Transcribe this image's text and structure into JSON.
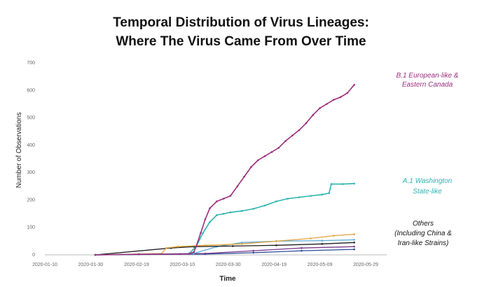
{
  "chart_data": {
    "type": "line",
    "title": "Temporal Distribution of Virus Lineages:",
    "subtitle": "Where The Virus Came From Over Time",
    "xlabel": "Time",
    "ylabel": "Number of Observations",
    "ylim": [
      0,
      700
    ],
    "xlim": [
      "2020-01-10",
      "2020-05-29"
    ],
    "yticks": [
      0,
      100,
      200,
      300,
      400,
      500,
      600,
      700
    ],
    "xticks": [
      "2020-01-10",
      "2020-01-30",
      "2020-02-19",
      "2020-03-10",
      "2020-03-30",
      "2020-04-19",
      "2020-05-09",
      "2020-05-29"
    ],
    "grid": false,
    "series": [
      {
        "name": "B.1 European-like & Eastern Canada",
        "color": "#9b2d7f",
        "points": [
          [
            "2020-02-01",
            0
          ],
          [
            "2020-02-20",
            2
          ],
          [
            "2020-03-09",
            3
          ],
          [
            "2020-03-13",
            4
          ],
          [
            "2020-03-15",
            10
          ],
          [
            "2020-03-16",
            30
          ],
          [
            "2020-03-18",
            80
          ],
          [
            "2020-03-20",
            130
          ],
          [
            "2020-03-22",
            170
          ],
          [
            "2020-03-25",
            195
          ],
          [
            "2020-03-28",
            205
          ],
          [
            "2020-03-31",
            215
          ],
          [
            "2020-04-03",
            250
          ],
          [
            "2020-04-06",
            285
          ],
          [
            "2020-04-09",
            320
          ],
          [
            "2020-04-12",
            345
          ],
          [
            "2020-04-15",
            360
          ],
          [
            "2020-04-18",
            375
          ],
          [
            "2020-04-21",
            390
          ],
          [
            "2020-04-24",
            415
          ],
          [
            "2020-04-27",
            435
          ],
          [
            "2020-04-30",
            455
          ],
          [
            "2020-05-03",
            480
          ],
          [
            "2020-05-06",
            510
          ],
          [
            "2020-05-09",
            535
          ],
          [
            "2020-05-12",
            550
          ],
          [
            "2020-05-15",
            565
          ],
          [
            "2020-05-18",
            575
          ],
          [
            "2020-05-21",
            590
          ],
          [
            "2020-05-24",
            620
          ]
        ]
      },
      {
        "name": "A.1 Washington State-like",
        "color": "#2bb3b0",
        "points": [
          [
            "2020-02-01",
            0
          ],
          [
            "2020-02-20",
            2
          ],
          [
            "2020-03-09",
            3
          ],
          [
            "2020-03-13",
            5
          ],
          [
            "2020-03-16",
            30
          ],
          [
            "2020-03-19",
            80
          ],
          [
            "2020-03-22",
            120
          ],
          [
            "2020-03-25",
            145
          ],
          [
            "2020-03-28",
            150
          ],
          [
            "2020-03-31",
            155
          ],
          [
            "2020-04-05",
            160
          ],
          [
            "2020-04-10",
            168
          ],
          [
            "2020-04-15",
            180
          ],
          [
            "2020-04-20",
            195
          ],
          [
            "2020-04-25",
            205
          ],
          [
            "2020-04-30",
            210
          ],
          [
            "2020-05-05",
            215
          ],
          [
            "2020-05-10",
            220
          ],
          [
            "2020-05-13",
            225
          ],
          [
            "2020-05-14",
            258
          ],
          [
            "2020-05-19",
            258
          ],
          [
            "2020-05-24",
            260
          ]
        ]
      },
      {
        "name": "Others (Including China & Iran-like Strains)",
        "color": "#e0a33a",
        "points": [
          [
            "2020-02-01",
            0
          ],
          [
            "2020-02-20",
            3
          ],
          [
            "2020-03-01",
            5
          ],
          [
            "2020-03-03",
            25
          ],
          [
            "2020-03-08",
            30
          ],
          [
            "2020-03-20",
            35
          ],
          [
            "2020-04-05",
            40
          ],
          [
            "2020-04-20",
            50
          ],
          [
            "2020-05-05",
            60
          ],
          [
            "2020-05-15",
            70
          ],
          [
            "2020-05-24",
            75
          ]
        ]
      },
      {
        "name": "",
        "color": "#1d1d1d",
        "points": [
          [
            "2020-02-01",
            0
          ],
          [
            "2020-03-05",
            25
          ],
          [
            "2020-03-15",
            30
          ],
          [
            "2020-04-01",
            32
          ],
          [
            "2020-04-20",
            35
          ],
          [
            "2020-05-10",
            40
          ],
          [
            "2020-05-24",
            45
          ]
        ]
      },
      {
        "name": "",
        "color": "#5aa9d6",
        "points": [
          [
            "2020-02-01",
            0
          ],
          [
            "2020-03-15",
            5
          ],
          [
            "2020-03-25",
            30
          ],
          [
            "2020-04-05",
            45
          ],
          [
            "2020-04-20",
            50
          ],
          [
            "2020-05-10",
            52
          ],
          [
            "2020-05-24",
            55
          ]
        ]
      },
      {
        "name": "",
        "color": "#7a3a8c",
        "points": [
          [
            "2020-02-01",
            0
          ],
          [
            "2020-03-20",
            5
          ],
          [
            "2020-04-10",
            15
          ],
          [
            "2020-05-01",
            25
          ],
          [
            "2020-05-24",
            30
          ]
        ]
      },
      {
        "name": "",
        "color": "#2a4a9a",
        "points": [
          [
            "2020-02-01",
            0
          ],
          [
            "2020-03-20",
            3
          ],
          [
            "2020-04-10",
            8
          ],
          [
            "2020-05-01",
            15
          ],
          [
            "2020-05-24",
            20
          ]
        ]
      }
    ],
    "annotations": [
      {
        "lines": [
          "B.1  European-like &",
          "Eastern Canada"
        ],
        "color": "#9b2d7f"
      },
      {
        "lines": [
          "A.1  Washington",
          "State-like"
        ],
        "color": "#2bb3b0"
      },
      {
        "lines": [
          "Others",
          "(Including China &",
          "Iran-like Strains)"
        ],
        "color": "#111111"
      }
    ]
  }
}
